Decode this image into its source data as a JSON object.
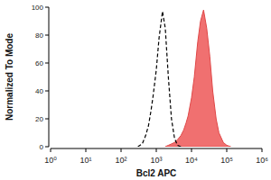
{
  "chart_data": {
    "type": "line",
    "x_label": "Bcl2 APC",
    "y_label": "Normalized To Mode",
    "log": "x",
    "x": [
      300,
      400,
      500,
      600,
      700,
      800,
      1000,
      1200,
      1500,
      1800,
      2200,
      2700,
      3300,
      4000,
      5000,
      6000,
      7000,
      8000,
      10000,
      12000,
      15000,
      18000,
      22000,
      27000,
      33000,
      40000,
      50000,
      60000,
      80000,
      100000,
      130000
    ],
    "series": [
      {
        "type": "line",
        "line_style": "dashed",
        "color": "#000000",
        "values": [
          0,
          2,
          8,
          15,
          25,
          35,
          55,
          78,
          97,
          85,
          50,
          20,
          6,
          1,
          0,
          null,
          null,
          null,
          null,
          null,
          null,
          null,
          null,
          null,
          null,
          null,
          null,
          null,
          null,
          null,
          null
        ]
      },
      {
        "type": "area",
        "color": "#f07070",
        "values": [
          null,
          null,
          null,
          null,
          null,
          null,
          null,
          null,
          null,
          0,
          1,
          2,
          3,
          5,
          8,
          12,
          17,
          22,
          35,
          50,
          75,
          90,
          98,
          85,
          65,
          40,
          20,
          10,
          3,
          1,
          0
        ]
      }
    ],
    "xlim": [
      1,
      1000000
    ],
    "xticks": [
      {
        "value": 1,
        "label": "10⁰"
      },
      {
        "value": 10,
        "label": "10¹"
      },
      {
        "value": 100,
        "label": "10²"
      },
      {
        "value": 1000,
        "label": "10³"
      },
      {
        "value": 10000,
        "label": "10⁴"
      },
      {
        "value": 100000,
        "label": "10⁵"
      },
      {
        "value": 1000000,
        "label": "10⁶"
      }
    ],
    "ylim": [
      0,
      100
    ],
    "yticks": [
      0,
      20,
      40,
      60,
      80,
      100
    ]
  }
}
